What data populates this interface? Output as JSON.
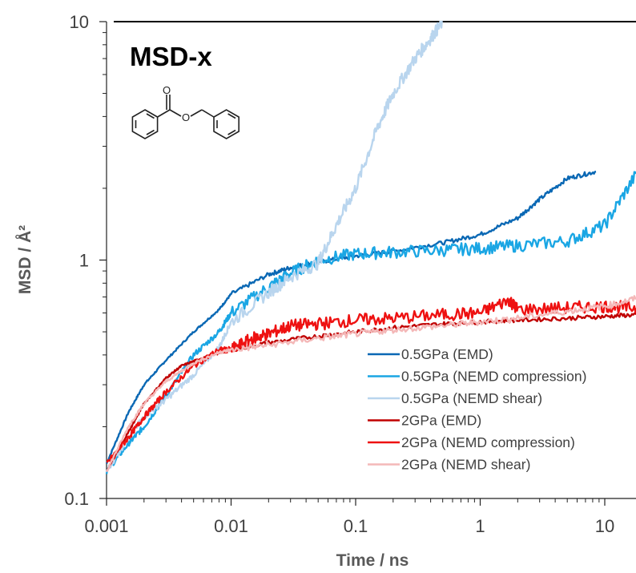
{
  "chart_data": {
    "type": "line",
    "title": "MSD-x",
    "xlabel": "Time / ns",
    "ylabel": "MSD / Å²",
    "xscale": "log",
    "yscale": "log",
    "xlim": [
      0.001,
      18
    ],
    "ylim": [
      0.1,
      10
    ],
    "x_ticks": [
      {
        "value": 0.001,
        "label": "0.001"
      },
      {
        "value": 0.01,
        "label": "0.01"
      },
      {
        "value": 0.1,
        "label": "0.1"
      },
      {
        "value": 1,
        "label": "1"
      },
      {
        "value": 10,
        "label": "10"
      }
    ],
    "y_ticks": [
      {
        "value": 0.1,
        "label": "0.1"
      },
      {
        "value": 1,
        "label": "1"
      },
      {
        "value": 10,
        "label": "10"
      }
    ],
    "grid": false,
    "legend_position": "bottom-right",
    "molecule_icon": "benzyl-benzoate-structure",
    "series": [
      {
        "name": "0.5GPa (EMD)",
        "color": "#0a68b4",
        "x": [
          0.001,
          0.0015,
          0.002,
          0.003,
          0.005,
          0.008,
          0.01,
          0.02,
          0.03,
          0.05,
          0.1,
          0.2,
          0.5,
          1,
          2,
          3,
          5,
          8.5
        ],
        "y": [
          0.14,
          0.23,
          0.3,
          0.38,
          0.5,
          0.62,
          0.72,
          0.87,
          0.93,
          0.98,
          1.04,
          1.09,
          1.18,
          1.28,
          1.5,
          1.8,
          2.2,
          2.35
        ]
      },
      {
        "name": "0.5GPa (NEMD compression)",
        "color": "#1aa6e4",
        "x": [
          0.001,
          0.0015,
          0.002,
          0.003,
          0.005,
          0.008,
          0.01,
          0.02,
          0.03,
          0.05,
          0.1,
          0.2,
          0.5,
          1,
          2,
          5,
          10,
          18
        ],
        "y": [
          0.13,
          0.17,
          0.2,
          0.27,
          0.4,
          0.5,
          0.6,
          0.77,
          0.88,
          1.0,
          1.06,
          1.08,
          1.1,
          1.12,
          1.15,
          1.2,
          1.4,
          2.3
        ]
      },
      {
        "name": "0.5GPa (NEMD shear)",
        "color": "#b9d5ee",
        "x": [
          0.001,
          0.0015,
          0.002,
          0.003,
          0.005,
          0.008,
          0.01,
          0.02,
          0.03,
          0.05,
          0.07,
          0.1,
          0.15,
          0.2,
          0.3,
          0.4,
          0.5
        ],
        "y": [
          0.13,
          0.18,
          0.22,
          0.26,
          0.33,
          0.43,
          0.55,
          0.73,
          0.85,
          0.97,
          1.4,
          2.0,
          3.6,
          5.0,
          7.0,
          8.5,
          10
        ]
      },
      {
        "name": "2GPa (EMD)",
        "color": "#c00000",
        "x": [
          0.001,
          0.0015,
          0.002,
          0.003,
          0.004,
          0.006,
          0.01,
          0.02,
          0.05,
          0.1,
          0.2,
          0.5,
          1,
          2,
          5,
          10,
          18
        ],
        "y": [
          0.13,
          0.19,
          0.25,
          0.32,
          0.36,
          0.39,
          0.42,
          0.45,
          0.48,
          0.5,
          0.52,
          0.54,
          0.55,
          0.56,
          0.57,
          0.58,
          0.59
        ]
      },
      {
        "name": "2GPa (NEMD compression)",
        "color": "#ee1111",
        "x": [
          0.001,
          0.0015,
          0.002,
          0.003,
          0.005,
          0.008,
          0.01,
          0.015,
          0.02,
          0.03,
          0.05,
          0.1,
          0.2,
          0.5,
          1,
          1.7,
          2,
          5,
          10,
          18
        ],
        "y": [
          0.14,
          0.18,
          0.22,
          0.28,
          0.36,
          0.42,
          0.42,
          0.47,
          0.49,
          0.53,
          0.54,
          0.56,
          0.57,
          0.59,
          0.6,
          0.68,
          0.62,
          0.63,
          0.64,
          0.63
        ]
      },
      {
        "name": "2GPa (NEMD shear)",
        "color": "#f4b8b8",
        "x": [
          0.001,
          0.0015,
          0.002,
          0.003,
          0.005,
          0.008,
          0.01,
          0.02,
          0.05,
          0.1,
          0.2,
          0.5,
          1,
          2,
          5,
          10,
          18
        ],
        "y": [
          0.13,
          0.2,
          0.25,
          0.31,
          0.37,
          0.41,
          0.42,
          0.44,
          0.47,
          0.49,
          0.51,
          0.53,
          0.55,
          0.57,
          0.61,
          0.64,
          0.69
        ]
      }
    ]
  }
}
